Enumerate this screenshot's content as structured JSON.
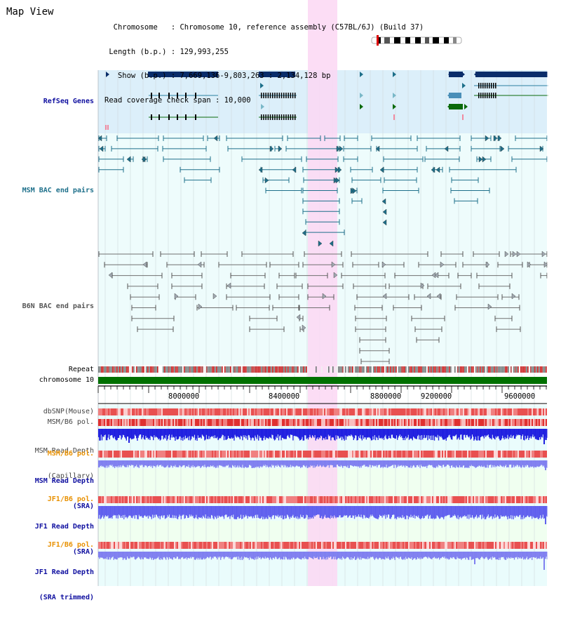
{
  "header": {
    "title": "Map View",
    "lines": [
      "  Chromosome   : Chromosome 10, reference assembly (C57BL/6J) (Build 37)",
      " Length (b.p.) : 129,993,255",
      "   Show (b.p.) : 7,669,136-9,803,263 : 2,134,128 bp",
      "Read coverage check span : 10,000"
    ]
  },
  "tracks": {
    "refseq": "RefSeq Genes",
    "msm_bac": "MSM BAC end pairs",
    "b6n_bac": "B6N BAC end pairs",
    "repeat": "Repeat",
    "chromosome": "chromosome 10",
    "dbsnp": "dbSNP(Mouse)",
    "msm_b6_pol_1": "MSM/B6 pol.",
    "msm_depth_cap_1": "MSM Read Depth",
    "msm_depth_cap_2": "(Capillary)",
    "msm_b6_pol_2": "MSM/B6 pol.",
    "msm_depth_sra_1": "MSM Read Depth",
    "msm_depth_sra_2": "(SRA)",
    "jf1_b6_pol_1": "JF1/B6 pol.",
    "jf1_depth_sra_1": "JF1 Read Depth",
    "jf1_depth_sra_2": "(SRA)",
    "jf1_b6_pol_2": "JF1/B6 pol.",
    "jf1_depth_trim_1": "JF1 Read Depth",
    "jf1_depth_trim_2": "(SRA trimmed)"
  },
  "axis": {
    "ticks": [
      "8000000",
      "8400000",
      "8800000",
      "9200000",
      "9600000"
    ]
  },
  "colors": {
    "refseq_bg": "#dceffa",
    "bac_bg": "#eefcfc",
    "highlight": "#fbd7f3",
    "gene": "#0a2d6a",
    "msm_bac": "#1d6f8a",
    "b6n_bac": "#707070",
    "chromosome_bar": "#007000",
    "orange_label": "#e89000",
    "blue_label": "#1010a0"
  }
}
